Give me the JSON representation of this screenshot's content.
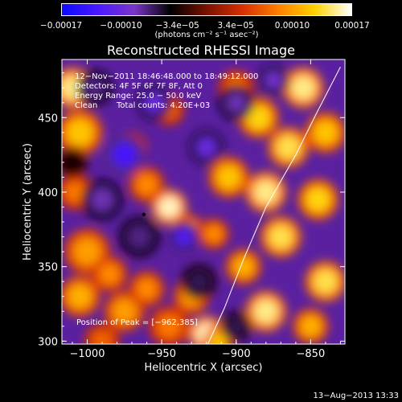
{
  "colorbar": {
    "colors": [
      "#0a0aff",
      "#4b18ff",
      "#7a36c8",
      "#000000",
      "#7a1200",
      "#d83000",
      "#ff8000",
      "#ffd200",
      "#ffffff"
    ],
    "ticks": [
      {
        "value": -0.00017,
        "label": "−0.00017"
      },
      {
        "value": -0.0001,
        "label": "−0.00010"
      },
      {
        "value": -3.4e-05,
        "label": "−3.4e−05"
      },
      {
        "value": 3.4e-05,
        "label": "3.4e−05"
      },
      {
        "value": 0.0001,
        "label": "0.00010"
      },
      {
        "value": 0.00017,
        "label": "0.00017"
      }
    ],
    "units": "(photons cm⁻² s⁻¹ asec⁻²)"
  },
  "chart_data": {
    "type": "heatmap",
    "title": "Reconstructed RHESSI Image",
    "xlabel": "Heliocentric X (arcsec)",
    "ylabel": "Heliocentric Y (arcsec)",
    "xlim": [
      -1017,
      -827
    ],
    "ylim": [
      298,
      489
    ],
    "xticks": [
      -1000,
      -950,
      -900,
      -850
    ],
    "yticks": [
      300,
      350,
      400,
      450
    ],
    "xtick_labels": [
      "−1000",
      "−950",
      "−900",
      "−850"
    ],
    "ytick_labels": [
      "300",
      "350",
      "400",
      "450"
    ],
    "vlim": [
      -0.00017,
      0.00017
    ],
    "peak": {
      "x": -962,
      "y": 385
    },
    "limb_curve": [
      [
        -919,
        298
      ],
      [
        -908,
        322
      ],
      [
        -895,
        355
      ],
      [
        -880,
        390
      ],
      [
        -860,
        425
      ],
      [
        -845,
        455
      ],
      [
        -830,
        484
      ]
    ],
    "blobs": [
      {
        "x": -1010,
        "y": 470,
        "v": 0.00015,
        "s": 8
      },
      {
        "x": -1005,
        "y": 440,
        "v": 0.00012,
        "s": 9
      },
      {
        "x": -1008,
        "y": 400,
        "v": 8e-05,
        "s": 7
      },
      {
        "x": -1000,
        "y": 360,
        "v": 0.0001,
        "s": 9
      },
      {
        "x": -1005,
        "y": 330,
        "v": 0.00011,
        "s": 8
      },
      {
        "x": -985,
        "y": 345,
        "v": 9e-05,
        "s": 7
      },
      {
        "x": -975,
        "y": 320,
        "v": 0.0001,
        "s": 8
      },
      {
        "x": -960,
        "y": 335,
        "v": 9e-05,
        "s": 7
      },
      {
        "x": -945,
        "y": 310,
        "v": 8e-05,
        "s": 8
      },
      {
        "x": -930,
        "y": 330,
        "v": 0.0001,
        "s": 7
      },
      {
        "x": -920,
        "y": 305,
        "v": 0.00016,
        "s": 7
      },
      {
        "x": -945,
        "y": 390,
        "v": 0.00016,
        "s": 7
      },
      {
        "x": -932,
        "y": 375,
        "v": 0.0001,
        "s": 6
      },
      {
        "x": -960,
        "y": 405,
        "v": 9e-05,
        "s": 7
      },
      {
        "x": -905,
        "y": 410,
        "v": 0.00012,
        "s": 8
      },
      {
        "x": -915,
        "y": 372,
        "v": 9e-05,
        "s": 6
      },
      {
        "x": -895,
        "y": 350,
        "v": 0.00011,
        "s": 7
      },
      {
        "x": -880,
        "y": 320,
        "v": 0.00015,
        "s": 8
      },
      {
        "x": -870,
        "y": 370,
        "v": 0.00014,
        "s": 8
      },
      {
        "x": -880,
        "y": 400,
        "v": 0.00015,
        "s": 8
      },
      {
        "x": -865,
        "y": 430,
        "v": 0.00014,
        "s": 8
      },
      {
        "x": -885,
        "y": 450,
        "v": 0.00013,
        "s": 8
      },
      {
        "x": -855,
        "y": 470,
        "v": 0.00015,
        "s": 8
      },
      {
        "x": -840,
        "y": 440,
        "v": 0.00012,
        "s": 8
      },
      {
        "x": -845,
        "y": 395,
        "v": 0.00013,
        "s": 8
      },
      {
        "x": -840,
        "y": 340,
        "v": 0.00014,
        "s": 8
      },
      {
        "x": -850,
        "y": 310,
        "v": 0.00011,
        "s": 7
      },
      {
        "x": -900,
        "y": 470,
        "v": 8e-05,
        "s": 7
      },
      {
        "x": -945,
        "y": 455,
        "v": 7e-05,
        "s": 6
      },
      {
        "x": -970,
        "y": 430,
        "v": 6e-05,
        "s": 6
      },
      {
        "x": -990,
        "y": 300,
        "v": 7e-05,
        "s": 7
      },
      {
        "x": -912,
        "y": 300,
        "v": 0.00012,
        "s": 6
      },
      {
        "x": -975,
        "y": 425,
        "v": -0.00013,
        "s": 8
      },
      {
        "x": -935,
        "y": 370,
        "v": -0.00012,
        "s": 6
      },
      {
        "x": -920,
        "y": 430,
        "v": -0.0001,
        "s": 7
      },
      {
        "x": -955,
        "y": 460,
        "v": -0.0001,
        "s": 7
      },
      {
        "x": -990,
        "y": 395,
        "v": -8e-05,
        "s": 8
      },
      {
        "x": -965,
        "y": 370,
        "v": -7e-05,
        "s": 8
      },
      {
        "x": -900,
        "y": 460,
        "v": -8e-05,
        "s": 7
      },
      {
        "x": -875,
        "y": 475,
        "v": -9e-05,
        "s": 6
      },
      {
        "x": -925,
        "y": 340,
        "v": -6e-05,
        "s": 7
      },
      {
        "x": -995,
        "y": 470,
        "v": -7e-05,
        "s": 7
      },
      {
        "x": -900,
        "y": 310,
        "v": -6e-05,
        "s": 6
      },
      {
        "x": -1010,
        "y": 420,
        "v": -4e-05,
        "s": 6
      }
    ]
  },
  "annotations": {
    "time": "12−Nov−2011 18:46:48.000 to 18:49:12.000",
    "detectors": "Detectors: 4F 5F 6F 7F 8F, Att 0",
    "energy": "Energy Range: 25.0 − 50.0 keV",
    "clean": "Clean",
    "counts": "Total counts: 4.20E+03",
    "peak_text": "Position of Peak = [−962,385]"
  },
  "footer": "13−Aug−2013 13:33"
}
